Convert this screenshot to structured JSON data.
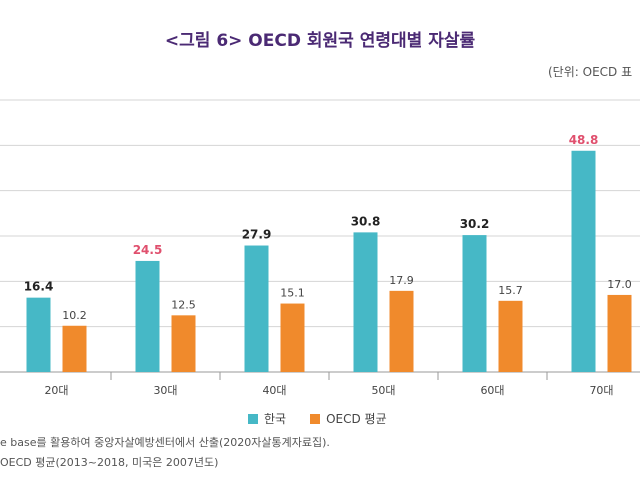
{
  "chart_data": {
    "type": "bar",
    "title": "<그림 6> OECD 회원국 연령대별 자살률",
    "unit": "(단위: OECD 표",
    "categories": [
      "20대",
      "30대",
      "40대",
      "50대",
      "60대",
      "70대"
    ],
    "series": [
      {
        "name": "한국",
        "values": [
          16.4,
          24.5,
          27.9,
          30.8,
          30.2,
          48.8
        ],
        "color": "#46b8c6"
      },
      {
        "name": "OECD 평균",
        "values": [
          10.2,
          12.5,
          15.1,
          17.9,
          15.7,
          17.0
        ],
        "color": "#f08a2c"
      }
    ],
    "highlight_labels": {
      "한국": [
        false,
        true,
        false,
        false,
        false,
        true
      ]
    },
    "highlight_color": "#e0506e",
    "ylim": [
      0,
      60
    ],
    "grid": true
  },
  "notes": [
    "e base를 활용하여 중앙자살예방센터에서 산출(2020자살통계자료집).",
    "OECD 평균(2013~2018, 미국은 2007년도)"
  ]
}
